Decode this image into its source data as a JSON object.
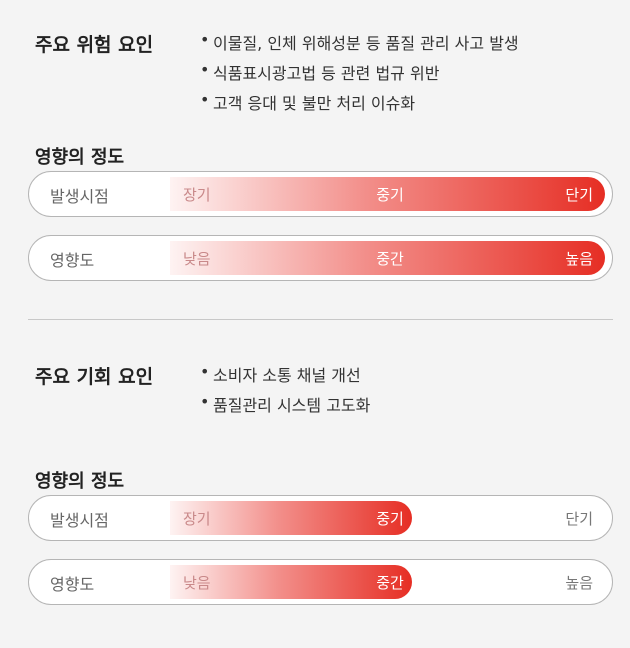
{
  "sections": [
    {
      "title": "주요 위험 요인",
      "bullets": [
        "이물질, 인체 위해성분 등 품질 관리 사고 발생",
        "식품표시광고법 등 관련 법규 위반",
        "고객 응대 및 불만 처리 이슈화"
      ],
      "impact_heading": "영향의 정도",
      "scales": [
        {
          "label": "발생시점",
          "levels": [
            "장기",
            "중기",
            "단기"
          ],
          "selected": "단기"
        },
        {
          "label": "영향도",
          "levels": [
            "낮음",
            "중간",
            "높음"
          ],
          "selected": "높음"
        }
      ]
    },
    {
      "title": "주요 기회 요인",
      "bullets": [
        "소비자 소통 채널 개선",
        "품질관리 시스템 고도화"
      ],
      "impact_heading": "영향의 정도",
      "scales": [
        {
          "label": "발생시점",
          "levels": [
            "장기",
            "중기",
            "단기"
          ],
          "selected": "중기"
        },
        {
          "label": "영향도",
          "levels": [
            "낮음",
            "중간",
            "높음"
          ],
          "selected": "중간"
        }
      ]
    }
  ]
}
